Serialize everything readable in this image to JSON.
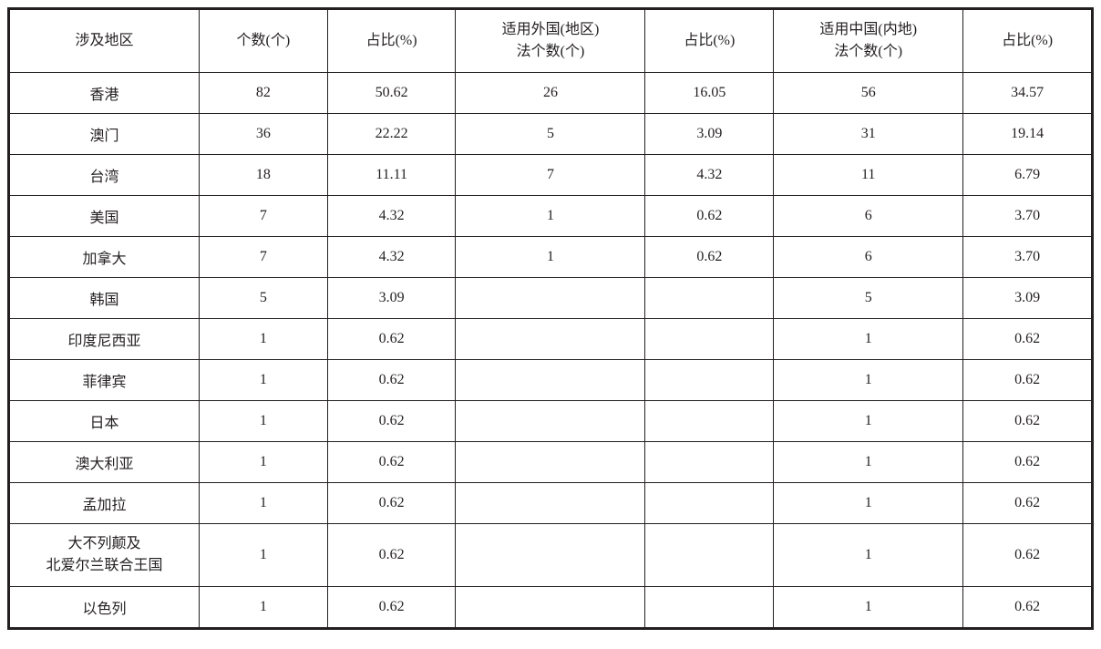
{
  "table": {
    "type": "table",
    "background_color": "#ffffff",
    "border_color": "#231f20",
    "text_color": "#231f20",
    "font_family": "SimSun",
    "font_size_pt": 12,
    "columns": [
      {
        "key": "region",
        "label": "涉及地区",
        "width_pct": 17,
        "align": "center"
      },
      {
        "key": "count",
        "label": "个数(个)",
        "width_pct": 11.5,
        "align": "center"
      },
      {
        "key": "pct",
        "label": "占比(%)",
        "width_pct": 11.5,
        "align": "center"
      },
      {
        "key": "f_count",
        "label": "适用外国(地区)\n法个数(个)",
        "width_pct": 17,
        "align": "center"
      },
      {
        "key": "f_pct",
        "label": "占比(%)",
        "width_pct": 11.5,
        "align": "center"
      },
      {
        "key": "c_count",
        "label": "适用中国(内地)\n法个数(个)",
        "width_pct": 17,
        "align": "center"
      },
      {
        "key": "c_pct",
        "label": "占比(%)",
        "width_pct": 11.5,
        "align": "center"
      }
    ],
    "rows": [
      {
        "region": "香港",
        "count": "82",
        "pct": "50.62",
        "f_count": "26",
        "f_pct": "16.05",
        "c_count": "56",
        "c_pct": "34.57"
      },
      {
        "region": "澳门",
        "count": "36",
        "pct": "22.22",
        "f_count": "5",
        "f_pct": "3.09",
        "c_count": "31",
        "c_pct": "19.14"
      },
      {
        "region": "台湾",
        "count": "18",
        "pct": "11.11",
        "f_count": "7",
        "f_pct": "4.32",
        "c_count": "11",
        "c_pct": "6.79"
      },
      {
        "region": "美国",
        "count": "7",
        "pct": "4.32",
        "f_count": "1",
        "f_pct": "0.62",
        "c_count": "6",
        "c_pct": "3.70"
      },
      {
        "region": "加拿大",
        "count": "7",
        "pct": "4.32",
        "f_count": "1",
        "f_pct": "0.62",
        "c_count": "6",
        "c_pct": "3.70"
      },
      {
        "region": "韩国",
        "count": "5",
        "pct": "3.09",
        "f_count": "",
        "f_pct": "",
        "c_count": "5",
        "c_pct": "3.09"
      },
      {
        "region": "印度尼西亚",
        "count": "1",
        "pct": "0.62",
        "f_count": "",
        "f_pct": "",
        "c_count": "1",
        "c_pct": "0.62"
      },
      {
        "region": "菲律宾",
        "count": "1",
        "pct": "0.62",
        "f_count": "",
        "f_pct": "",
        "c_count": "1",
        "c_pct": "0.62"
      },
      {
        "region": "日本",
        "count": "1",
        "pct": "0.62",
        "f_count": "",
        "f_pct": "",
        "c_count": "1",
        "c_pct": "0.62"
      },
      {
        "region": "澳大利亚",
        "count": "1",
        "pct": "0.62",
        "f_count": "",
        "f_pct": "",
        "c_count": "1",
        "c_pct": "0.62"
      },
      {
        "region": "孟加拉",
        "count": "1",
        "pct": "0.62",
        "f_count": "",
        "f_pct": "",
        "c_count": "1",
        "c_pct": "0.62"
      },
      {
        "region": "大不列颠及\n北爱尔兰联合王国",
        "count": "1",
        "pct": "0.62",
        "f_count": "",
        "f_pct": "",
        "c_count": "1",
        "c_pct": "0.62"
      },
      {
        "region": "以色列",
        "count": "1",
        "pct": "0.62",
        "f_count": "",
        "f_pct": "",
        "c_count": "1",
        "c_pct": "0.62"
      }
    ]
  }
}
